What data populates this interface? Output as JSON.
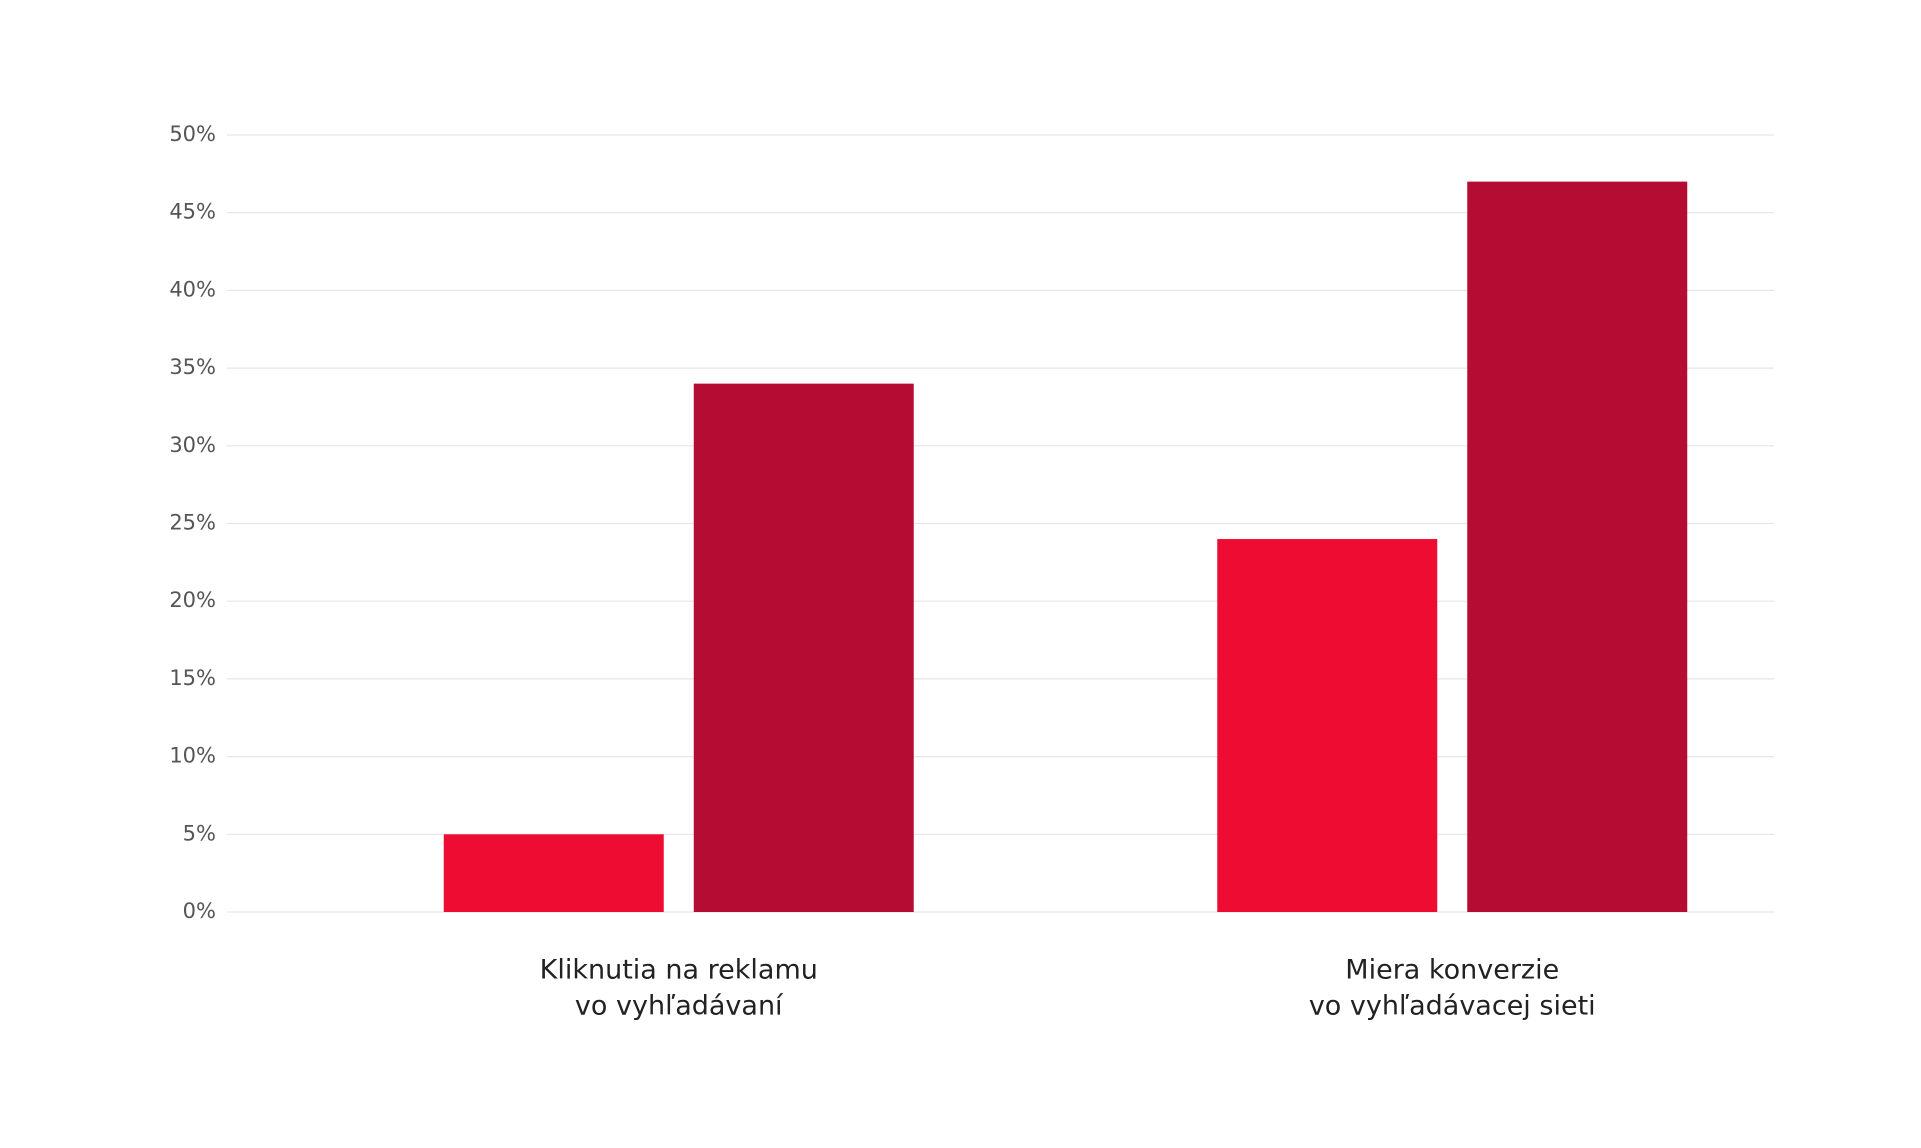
{
  "chart_data": {
    "type": "bar",
    "categories": [
      [
        "Kliknutia na reklamu",
        "vo vyhľadávaní"
      ],
      [
        "Miera konverzie",
        "vo vyhľadávacej sieti"
      ]
    ],
    "series": [
      {
        "color": "#ee0c33",
        "values": [
          5,
          24
        ]
      },
      {
        "color": "#b50c34",
        "values": [
          34,
          47
        ]
      }
    ],
    "ylim": [
      0,
      50
    ],
    "yticks": [
      {
        "value": 0,
        "label": "0%"
      },
      {
        "value": 5,
        "label": "5%"
      },
      {
        "value": 10,
        "label": "10%"
      },
      {
        "value": 15,
        "label": "15%"
      },
      {
        "value": 20,
        "label": "20%"
      },
      {
        "value": 25,
        "label": "25%"
      },
      {
        "value": 30,
        "label": "30%"
      },
      {
        "value": 35,
        "label": "35%"
      },
      {
        "value": 40,
        "label": "40%"
      },
      {
        "value": 45,
        "label": "45%"
      },
      {
        "value": 50,
        "label": "50%"
      }
    ],
    "grid": true
  }
}
